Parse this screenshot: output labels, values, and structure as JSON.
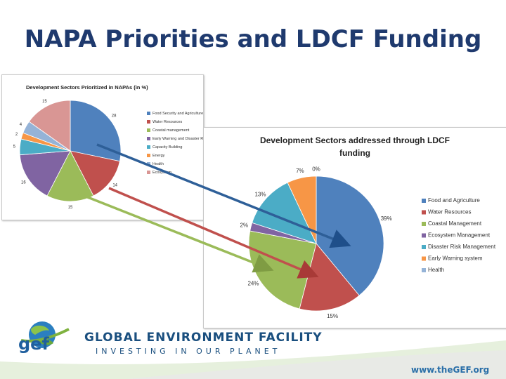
{
  "slide": {
    "title": "NAPA Priorities and LDCF Funding"
  },
  "colors": {
    "title": "#1f3a6e",
    "arrow_blue": "#2e5f98",
    "arrow_red": "#c0504d",
    "arrow_green": "#9bbb59"
  },
  "chart_data": [
    {
      "type": "pie",
      "title": "Development Sectors Prioritized in NAPAs (in %)",
      "legend_position": "right",
      "categories": [
        "Food Security and Agriculture",
        "Water Resources",
        "Coastal management",
        "Early Warning and Disaster Risk",
        "Capacity Building",
        "Energy",
        "Health",
        "Ecosystem"
      ],
      "values": [
        28,
        14,
        15,
        16,
        5,
        2,
        4,
        15
      ],
      "value_labels": [
        "28",
        "14",
        "15",
        "16",
        "5",
        "2",
        "4",
        "15"
      ],
      "colors": [
        "#4f81bd",
        "#c0504d",
        "#9bbb59",
        "#8064a2",
        "#4bacc6",
        "#f79646",
        "#95b3d7",
        "#d99694"
      ]
    },
    {
      "type": "pie",
      "title": "Development Sectors addressed through LDCF funding",
      "title_lines": [
        "Development Sectors addressed through LDCF",
        "funding"
      ],
      "legend_position": "right",
      "categories": [
        "Food and Agriculture",
        "Water Resources",
        "Coastal Management",
        "Ecosystem Management",
        "Disaster Risk Management",
        "Early Warning system",
        "Health"
      ],
      "values": [
        39,
        15,
        24,
        2,
        13,
        7,
        0
      ],
      "value_labels": [
        "39%",
        "15%",
        "24%",
        "2%",
        "13%",
        "7%",
        "0%"
      ],
      "colors": [
        "#4f81bd",
        "#c0504d",
        "#9bbb59",
        "#8064a2",
        "#4bacc6",
        "#f79646",
        "#95b3d7"
      ]
    }
  ],
  "footer": {
    "logo_text": "gef",
    "org_name": "GLOBAL ENVIRONMENT FACILITY",
    "tagline": "INVESTING IN OUR PLANET",
    "website": "www.theGEF.org"
  }
}
